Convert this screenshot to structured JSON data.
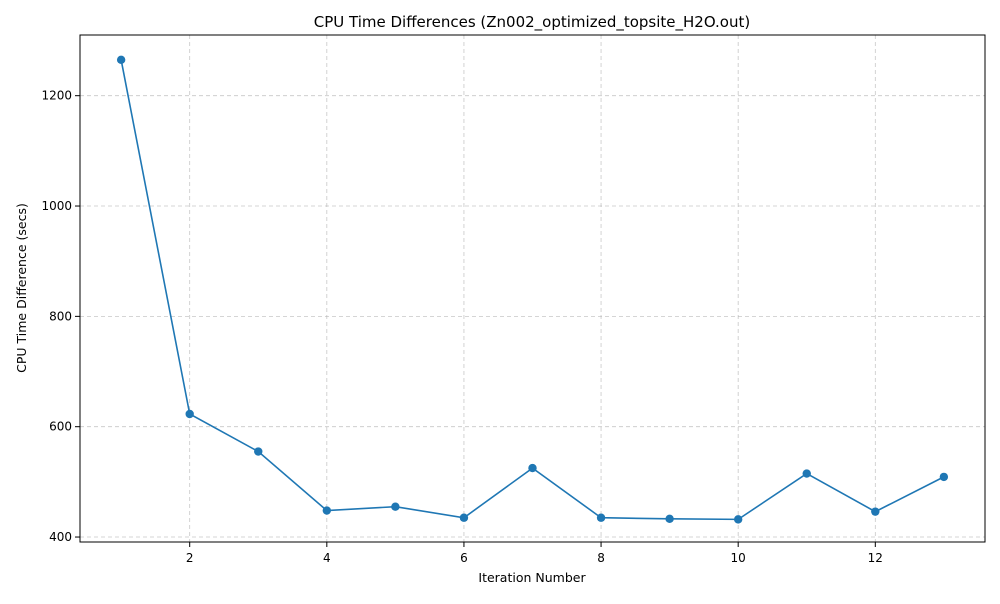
{
  "chart_data": {
    "type": "line",
    "title": "CPU Time Differences (Zn002_optimized_topsite_H2O.out)",
    "xlabel": "Iteration Number",
    "ylabel": "CPU Time Difference (secs)",
    "xlim": [
      0.4,
      13.6
    ],
    "ylim": [
      391,
      1310
    ],
    "x_ticks": [
      2,
      4,
      6,
      8,
      10,
      12
    ],
    "y_ticks": [
      400,
      600,
      800,
      1000,
      1200
    ],
    "grid": true,
    "legend": "none",
    "series": [
      {
        "x": [
          1,
          2,
          3,
          4,
          5,
          6,
          7,
          8,
          9,
          10,
          11,
          12,
          13
        ],
        "values": [
          1265,
          623,
          555,
          448,
          455,
          435,
          525,
          435,
          433,
          432,
          515,
          446,
          509
        ],
        "color": "#1f77b4",
        "marker": "circle"
      }
    ]
  }
}
